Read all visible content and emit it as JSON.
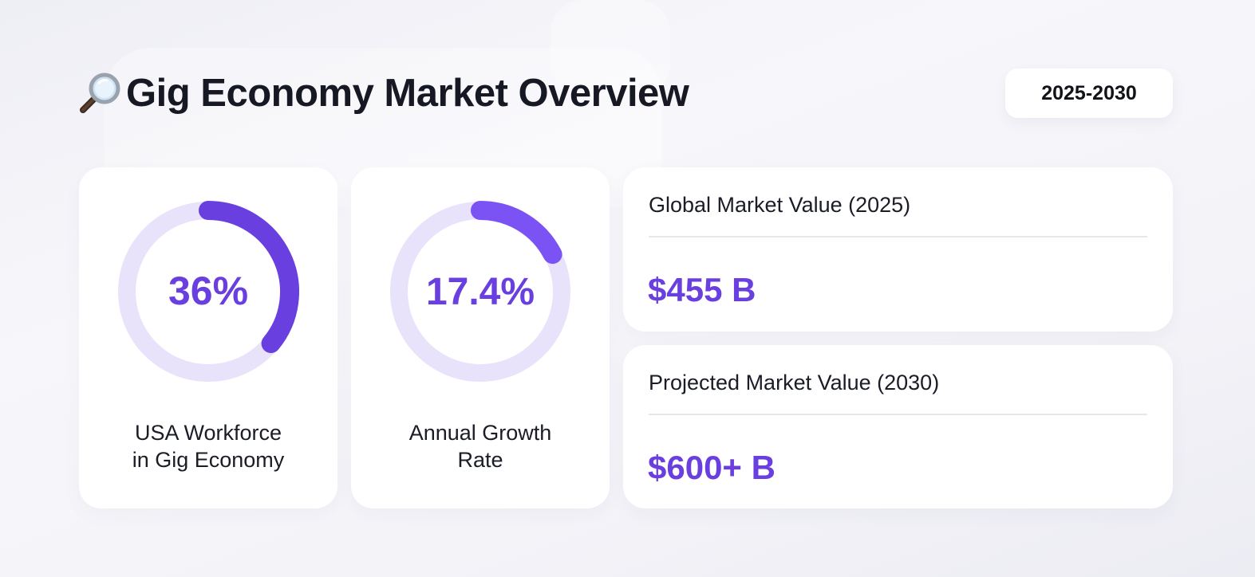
{
  "header": {
    "title": "Gig Economy Market Overview",
    "icon": "magnifier-icon",
    "year_range": "2025-2030"
  },
  "stats": [
    {
      "value": "36%",
      "percent": 36,
      "caption_line1": "USA Workforce",
      "caption_line2": "in Gig Economy"
    },
    {
      "value": "17.4%",
      "percent": 17.4,
      "caption_line1": "Annual Growth",
      "caption_line2": "Rate"
    }
  ],
  "market": [
    {
      "label": "Global Market Value (2025)",
      "value": "$455 B"
    },
    {
      "label": "Projected Market Value (2030)",
      "value": "$600+ B"
    }
  ],
  "colors": {
    "accent": "#6a3fe0",
    "accent_light": "#7b52f4",
    "track": "#e8e2fb"
  }
}
